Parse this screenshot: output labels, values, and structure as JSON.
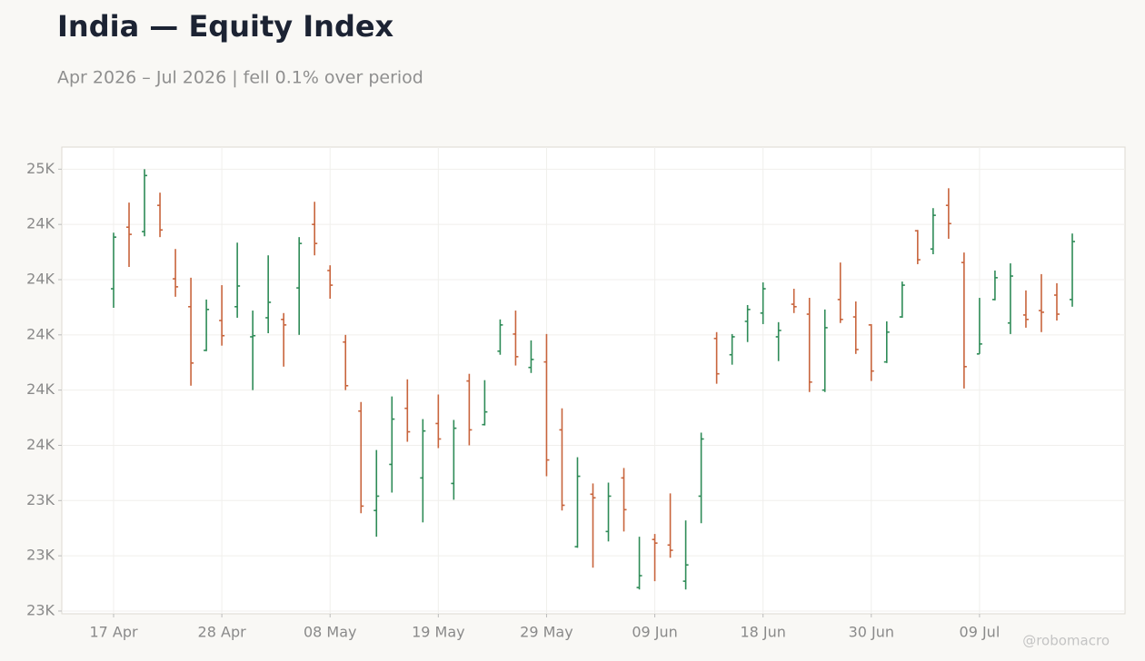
{
  "chart_data": {
    "type": "ohlc",
    "title": "India — Equity Index",
    "subtitle": "Apr 2026 – Jul 2026 | fell 0.1% over period",
    "watermark": "@robomacro",
    "up_color": "#2e8b57",
    "down_color": "#c8643c",
    "grid": true,
    "categories": [
      "17 Apr",
      null,
      null,
      null,
      null,
      null,
      null,
      "28 Apr",
      null,
      null,
      null,
      null,
      null,
      null,
      "08 May",
      null,
      null,
      null,
      null,
      null,
      null,
      "19 May",
      null,
      null,
      null,
      null,
      null,
      null,
      "29 May",
      null,
      null,
      null,
      null,
      null,
      null,
      "09 Jun",
      null,
      null,
      null,
      null,
      null,
      null,
      "18 Jun",
      null,
      null,
      null,
      null,
      null,
      null,
      "30 Jun",
      null,
      null,
      null,
      null,
      null,
      null,
      "09 Jul",
      null,
      null,
      null,
      null,
      null,
      null
    ],
    "open": [
      24167,
      24390,
      24374,
      24469,
      24203,
      24102,
      23944,
      24052,
      24102,
      23993,
      24062,
      24056,
      24170,
      24400,
      24233,
      23974,
      23724,
      23364,
      23531,
      23734,
      23482,
      23679,
      23462,
      23833,
      23675,
      23941,
      24003,
      23882,
      23902,
      23656,
      23233,
      23423,
      23288,
      23482,
      23085,
      23259,
      23239,
      23108,
      23416,
      23987,
      23928,
      24049,
      24079,
      23993,
      24111,
      24075,
      23800,
      24128,
      24065,
      24036,
      23902,
      24065,
      24377,
      24311,
      24469,
      24262,
      23931,
      24128,
      24043,
      24072,
      24088,
      24144,
      24128
    ],
    "high": [
      24370,
      24479,
      24600,
      24515,
      24311,
      24207,
      24128,
      24180,
      24334,
      24088,
      24288,
      24079,
      24354,
      24482,
      24252,
      24000,
      23757,
      23583,
      23777,
      23839,
      23695,
      23784,
      23692,
      23859,
      23836,
      24056,
      24088,
      23980,
      24003,
      23734,
      23557,
      23462,
      23465,
      23518,
      23269,
      23279,
      23426,
      23328,
      23646,
      24010,
      24003,
      24108,
      24190,
      24046,
      24167,
      24134,
      24092,
      24262,
      24121,
      24039,
      24049,
      24193,
      24380,
      24459,
      24531,
      24298,
      24134,
      24233,
      24259,
      24161,
      24220,
      24187,
      24367
    ],
    "low": [
      24098,
      24246,
      24357,
      24354,
      24138,
      23816,
      23941,
      23961,
      24062,
      23800,
      24006,
      23885,
      24000,
      24288,
      24131,
      23800,
      23354,
      23269,
      23429,
      23613,
      23321,
      23590,
      23403,
      23600,
      23672,
      23928,
      23889,
      23862,
      23488,
      23364,
      23229,
      23157,
      23252,
      23288,
      23078,
      23108,
      23193,
      23078,
      23318,
      23823,
      23892,
      23974,
      24039,
      23905,
      24079,
      23793,
      23793,
      24043,
      23931,
      23833,
      23898,
      24062,
      24256,
      24292,
      24348,
      23806,
      23931,
      24125,
      24003,
      24026,
      24010,
      24052,
      24102
    ],
    "close": [
      24354,
      24364,
      24577,
      24380,
      24174,
      23898,
      24092,
      23997,
      24177,
      23997,
      24118,
      24036,
      24331,
      24331,
      24180,
      23816,
      23380,
      23416,
      23695,
      23649,
      23652,
      23623,
      23662,
      23656,
      23721,
      24036,
      23921,
      23911,
      23547,
      23383,
      23488,
      23410,
      23416,
      23367,
      23128,
      23246,
      23220,
      23167,
      23623,
      23859,
      23993,
      24092,
      24167,
      24016,
      24102,
      23829,
      24026,
      24056,
      23947,
      23869,
      24010,
      24180,
      24272,
      24433,
      24403,
      23885,
      23967,
      24207,
      24213,
      24056,
      24082,
      24075,
      24338
    ],
    "ylim": [
      22990,
      24680
    ],
    "yticks": [
      {
        "value": 23000,
        "label": "23K"
      },
      {
        "value": 23200,
        "label": "23K"
      },
      {
        "value": 23400,
        "label": "23K"
      },
      {
        "value": 23600,
        "label": "24K"
      },
      {
        "value": 23800,
        "label": "24K"
      },
      {
        "value": 24000,
        "label": "24K"
      },
      {
        "value": 24200,
        "label": "24K"
      },
      {
        "value": 24400,
        "label": "24K"
      },
      {
        "value": 24600,
        "label": "25K"
      }
    ]
  }
}
